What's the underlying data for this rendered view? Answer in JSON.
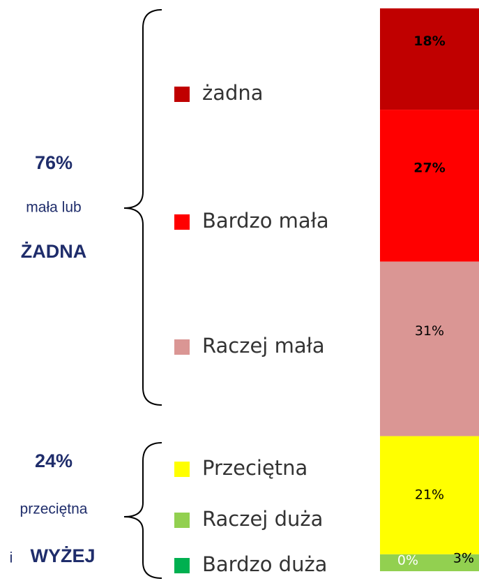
{
  "chart_data": {
    "type": "stacked-bar",
    "series": [
      {
        "name": "żadna",
        "color": "#c00000",
        "values": [
          18
        ],
        "value_labels": [
          "18%"
        ]
      },
      {
        "name": "Bardzo mała",
        "color": "#ff0000",
        "values": [
          27
        ],
        "value_labels": [
          "27%"
        ]
      },
      {
        "name": "Raczej mała",
        "color": "#da9694",
        "values": [
          31
        ],
        "value_labels": [
          "31%"
        ]
      },
      {
        "name": "Przeciętna",
        "color": "#ffff00",
        "values": [
          21
        ],
        "value_labels": [
          "21%"
        ]
      },
      {
        "name": "Raczej duża",
        "color": "#92d050",
        "values": [
          3
        ],
        "value_labels": [
          "3%"
        ]
      },
      {
        "name": "Bardzo duża",
        "color": "#00b050",
        "values": [
          0
        ],
        "value_labels": [
          "0%"
        ]
      }
    ],
    "annotations": {
      "upper_percent": "76%",
      "upper_text": "mała lub",
      "upper_word": "ŻADNA",
      "lower_percent": "24%",
      "lower_text": "przeciętna",
      "lower_i": "i",
      "lower_word": "WYŻEJ"
    }
  }
}
